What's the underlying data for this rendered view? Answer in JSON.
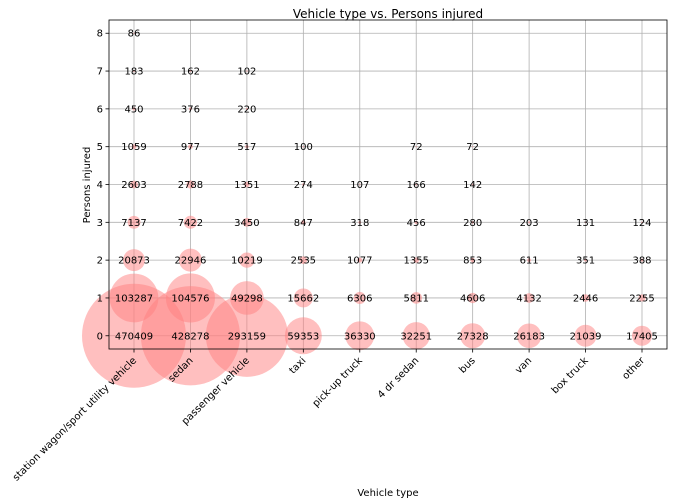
{
  "chart_data": {
    "type": "scatter",
    "title": "Vehicle type vs. Persons injured",
    "xlabel": "Vehicle type",
    "ylabel": "Persons injured",
    "categories": [
      "station wagon/sport utility vehicle",
      "sedan",
      "passenger vehicle",
      "taxi",
      "pick-up truck",
      "4 dr sedan",
      "bus",
      "van",
      "box truck",
      "other"
    ],
    "y_ticks": [
      0,
      1,
      2,
      3,
      4,
      5,
      6,
      7,
      8
    ],
    "ylim": [
      -0.35,
      8.35
    ],
    "grid": true,
    "marker_color": "#ff7f7f",
    "marker_alpha": 0.5,
    "points": [
      {
        "x": "station wagon/sport utility vehicle",
        "y": 0,
        "count": 470409
      },
      {
        "x": "station wagon/sport utility vehicle",
        "y": 1,
        "count": 103287
      },
      {
        "x": "station wagon/sport utility vehicle",
        "y": 2,
        "count": 20873
      },
      {
        "x": "station wagon/sport utility vehicle",
        "y": 3,
        "count": 7137
      },
      {
        "x": "station wagon/sport utility vehicle",
        "y": 4,
        "count": 2603
      },
      {
        "x": "station wagon/sport utility vehicle",
        "y": 5,
        "count": 1059
      },
      {
        "x": "station wagon/sport utility vehicle",
        "y": 6,
        "count": 450
      },
      {
        "x": "station wagon/sport utility vehicle",
        "y": 7,
        "count": 183
      },
      {
        "x": "station wagon/sport utility vehicle",
        "y": 8,
        "count": 86
      },
      {
        "x": "sedan",
        "y": 0,
        "count": 428278
      },
      {
        "x": "sedan",
        "y": 1,
        "count": 104576
      },
      {
        "x": "sedan",
        "y": 2,
        "count": 22946
      },
      {
        "x": "sedan",
        "y": 3,
        "count": 7422
      },
      {
        "x": "sedan",
        "y": 4,
        "count": 2788
      },
      {
        "x": "sedan",
        "y": 5,
        "count": 977
      },
      {
        "x": "sedan",
        "y": 6,
        "count": 376
      },
      {
        "x": "sedan",
        "y": 7,
        "count": 162
      },
      {
        "x": "passenger vehicle",
        "y": 0,
        "count": 293159
      },
      {
        "x": "passenger vehicle",
        "y": 1,
        "count": 49298
      },
      {
        "x": "passenger vehicle",
        "y": 2,
        "count": 10219
      },
      {
        "x": "passenger vehicle",
        "y": 3,
        "count": 3450
      },
      {
        "x": "passenger vehicle",
        "y": 4,
        "count": 1351
      },
      {
        "x": "passenger vehicle",
        "y": 5,
        "count": 517
      },
      {
        "x": "passenger vehicle",
        "y": 6,
        "count": 220
      },
      {
        "x": "passenger vehicle",
        "y": 7,
        "count": 102
      },
      {
        "x": "taxi",
        "y": 0,
        "count": 59353
      },
      {
        "x": "taxi",
        "y": 1,
        "count": 15662
      },
      {
        "x": "taxi",
        "y": 2,
        "count": 2535
      },
      {
        "x": "taxi",
        "y": 3,
        "count": 847
      },
      {
        "x": "taxi",
        "y": 4,
        "count": 274
      },
      {
        "x": "taxi",
        "y": 5,
        "count": 100
      },
      {
        "x": "pick-up truck",
        "y": 0,
        "count": 36330
      },
      {
        "x": "pick-up truck",
        "y": 1,
        "count": 6306
      },
      {
        "x": "pick-up truck",
        "y": 2,
        "count": 1077
      },
      {
        "x": "pick-up truck",
        "y": 3,
        "count": 318
      },
      {
        "x": "pick-up truck",
        "y": 4,
        "count": 107
      },
      {
        "x": "4 dr sedan",
        "y": 0,
        "count": 32251
      },
      {
        "x": "4 dr sedan",
        "y": 1,
        "count": 5811
      },
      {
        "x": "4 dr sedan",
        "y": 2,
        "count": 1355
      },
      {
        "x": "4 dr sedan",
        "y": 3,
        "count": 456
      },
      {
        "x": "4 dr sedan",
        "y": 4,
        "count": 166
      },
      {
        "x": "4 dr sedan",
        "y": 5,
        "count": 72
      },
      {
        "x": "bus",
        "y": 0,
        "count": 27328
      },
      {
        "x": "bus",
        "y": 1,
        "count": 4606
      },
      {
        "x": "bus",
        "y": 2,
        "count": 853
      },
      {
        "x": "bus",
        "y": 3,
        "count": 280
      },
      {
        "x": "bus",
        "y": 4,
        "count": 142
      },
      {
        "x": "bus",
        "y": 5,
        "count": 72
      },
      {
        "x": "van",
        "y": 0,
        "count": 26183
      },
      {
        "x": "van",
        "y": 1,
        "count": 4132
      },
      {
        "x": "van",
        "y": 2,
        "count": 611
      },
      {
        "x": "van",
        "y": 3,
        "count": 203
      },
      {
        "x": "box truck",
        "y": 0,
        "count": 21039
      },
      {
        "x": "box truck",
        "y": 1,
        "count": 2446
      },
      {
        "x": "box truck",
        "y": 2,
        "count": 351
      },
      {
        "x": "box truck",
        "y": 3,
        "count": 131
      },
      {
        "x": "other",
        "y": 0,
        "count": 17405
      },
      {
        "x": "other",
        "y": 1,
        "count": 2255
      },
      {
        "x": "other",
        "y": 2,
        "count": 388
      },
      {
        "x": "other",
        "y": 3,
        "count": 124
      }
    ]
  }
}
